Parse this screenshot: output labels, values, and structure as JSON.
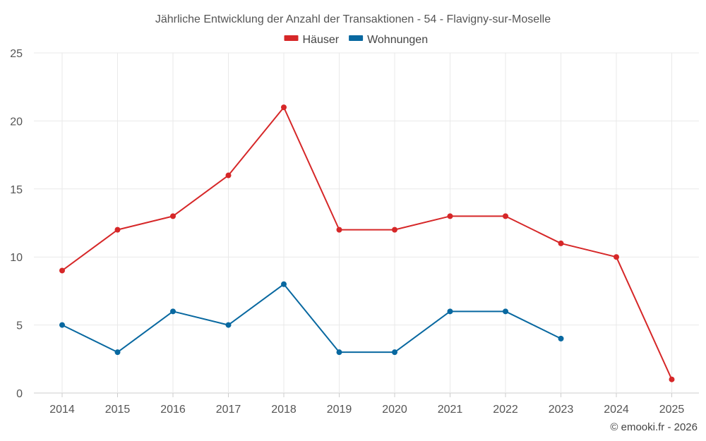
{
  "chart_data": {
    "type": "line",
    "title": "Jährliche Entwicklung der Anzahl der Transaktionen - 54 - Flavigny-sur-Moselle",
    "categories": [
      "2014",
      "2015",
      "2016",
      "2017",
      "2018",
      "2019",
      "2020",
      "2021",
      "2022",
      "2023",
      "2024",
      "2025"
    ],
    "series": [
      {
        "name": "Häuser",
        "color": "#d62728",
        "values": [
          9,
          12,
          13,
          16,
          21,
          12,
          12,
          13,
          13,
          11,
          10,
          1
        ]
      },
      {
        "name": "Wohnungen",
        "color": "#0868a0",
        "values": [
          5,
          3,
          6,
          5,
          8,
          3,
          3,
          6,
          6,
          4,
          null,
          null
        ]
      }
    ],
    "yticks": [
      0,
      5,
      10,
      15,
      20,
      25
    ],
    "ylim": [
      0,
      25
    ],
    "xlabel": "",
    "ylabel": "",
    "grid": true,
    "legend_position": "top-center"
  },
  "credit": "© emooki.fr - 2026"
}
